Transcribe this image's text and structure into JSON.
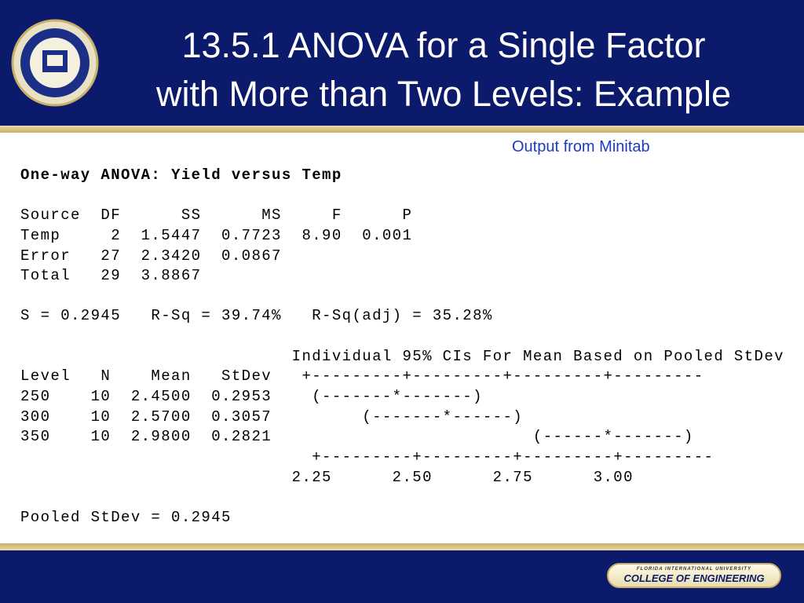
{
  "header": {
    "title_lines": [
      "13.5.1 ANOVA for a Single Factor",
      "with More than Two Levels: Example"
    ]
  },
  "subtitle": "Output from Minitab",
  "output": {
    "heading": "One-way ANOVA: Yield versus Temp",
    "anova_table": [
      "Source  DF      SS      MS     F      P",
      "Temp     2  1.5447  0.7723  8.90  0.001",
      "Error   27  2.3420  0.0867",
      "Total   29  3.8867"
    ],
    "fit_summary": "S = 0.2945   R-Sq = 39.74%   R-Sq(adj) = 35.28%",
    "ci_block": [
      "                           Individual 95% CIs For Mean Based on Pooled StDev",
      "Level   N    Mean   StDev   +---------+---------+---------+---------",
      "250    10  2.4500  0.2953    (-------*-------)",
      "300    10  2.5700  0.3057         (-------*------)",
      "350    10  2.9800  0.2821                          (------*-------)",
      "                             +---------+---------+---------+---------",
      "                           2.25      2.50      2.75      3.00"
    ],
    "pooled": "Pooled StDev = 0.2945"
  },
  "footer": {
    "badge_top": "FLORIDA INTERNATIONAL UNIVERSITY",
    "badge_main": "COLLEGE OF ENGINEERING"
  }
}
